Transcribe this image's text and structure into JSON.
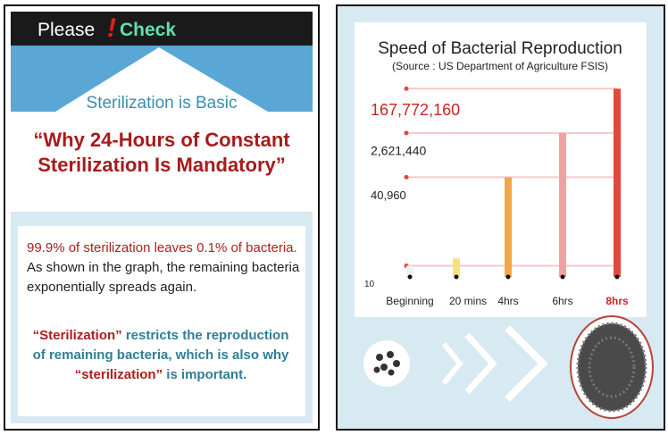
{
  "left": {
    "header": [
      "Please",
      "!",
      "Check"
    ],
    "subtitle": "Sterilization is Basic",
    "heading": [
      "“Why 24-Hours of Constant",
      "Sterilization Is Mandatory”"
    ],
    "paragraph1": {
      "highlight": "99.9% of sterilization leaves 0.1% of bacteria.",
      "rest": " As shown in the graph, the remaining bacteria exponentially spreads again."
    },
    "paragraph2": [
      "“Sterilization”",
      " restricts the reproduction of remaining bacteria, which is also why ",
      "“sterilization”",
      " is important."
    ]
  },
  "chart_data": {
    "type": "bar",
    "title": "Speed of Bacterial Reproduction",
    "subtitle": "(Source : US Department of Agriculture FSIS)",
    "categories": [
      "Beginning",
      "20 mins",
      "4hrs",
      "6hrs",
      "8hrs"
    ],
    "values": [
      10,
      20,
      40960,
      2621440,
      167772160
    ],
    "colors": [
      "#f2f2f2",
      "#f6e27a",
      "#f0a94a",
      "#f3a0a0",
      "#e0493b"
    ],
    "log_scale": true,
    "ylim": [
      1,
      1000000000
    ],
    "yticks": [
      {
        "value": 10,
        "label": "10"
      },
      {
        "value": 40960,
        "label": "40,960"
      },
      {
        "value": 2621440,
        "label": "2,621,440"
      },
      {
        "value": 167772160,
        "label": "167,772,160"
      }
    ],
    "grid": true,
    "grid_color": "#f6c9c9"
  }
}
